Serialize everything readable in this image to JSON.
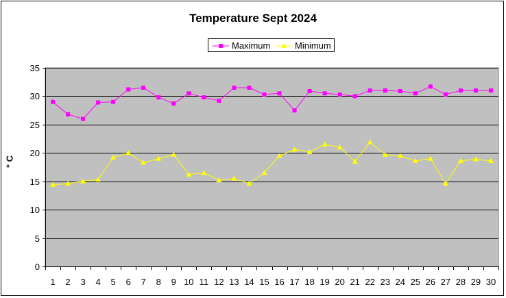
{
  "chart_data": {
    "type": "line",
    "title": "Temperature Sept 2024",
    "xlabel": "",
    "ylabel": "° C",
    "ylim": [
      0,
      35
    ],
    "yticks": [
      0,
      5,
      10,
      15,
      20,
      25,
      30,
      35
    ],
    "grid": true,
    "legend_position": "top-center",
    "plot_background": "#c0c0c0",
    "categories": [
      "1",
      "2",
      "3",
      "4",
      "5",
      "6",
      "7",
      "8",
      "9",
      "10",
      "11",
      "12",
      "13",
      "14",
      "15",
      "16",
      "17",
      "18",
      "19",
      "20",
      "21",
      "22",
      "23",
      "24",
      "25",
      "26",
      "27",
      "28",
      "29",
      "30"
    ],
    "series": [
      {
        "name": "Maximum",
        "color": "#ff00ff",
        "marker": "square",
        "values": [
          29.0,
          26.8,
          26.0,
          28.9,
          29.0,
          31.2,
          31.5,
          29.8,
          28.7,
          30.5,
          29.8,
          29.2,
          31.5,
          31.5,
          30.3,
          30.5,
          27.5,
          30.9,
          30.5,
          30.3,
          30.0,
          31.0,
          31.0,
          30.9,
          30.5,
          31.7,
          30.3,
          31.0,
          31.0,
          31.0
        ]
      },
      {
        "name": "Minimum",
        "color": "#ffff00",
        "marker": "triangle",
        "values": [
          14.4,
          14.6,
          15.0,
          15.3,
          19.2,
          20.0,
          18.3,
          19.0,
          19.7,
          16.2,
          16.5,
          15.2,
          15.5,
          14.6,
          16.5,
          19.5,
          20.6,
          20.2,
          21.5,
          21.0,
          18.5,
          21.9,
          19.7,
          19.5,
          18.6,
          19.0,
          14.6,
          18.6,
          18.9,
          18.6
        ]
      }
    ]
  }
}
